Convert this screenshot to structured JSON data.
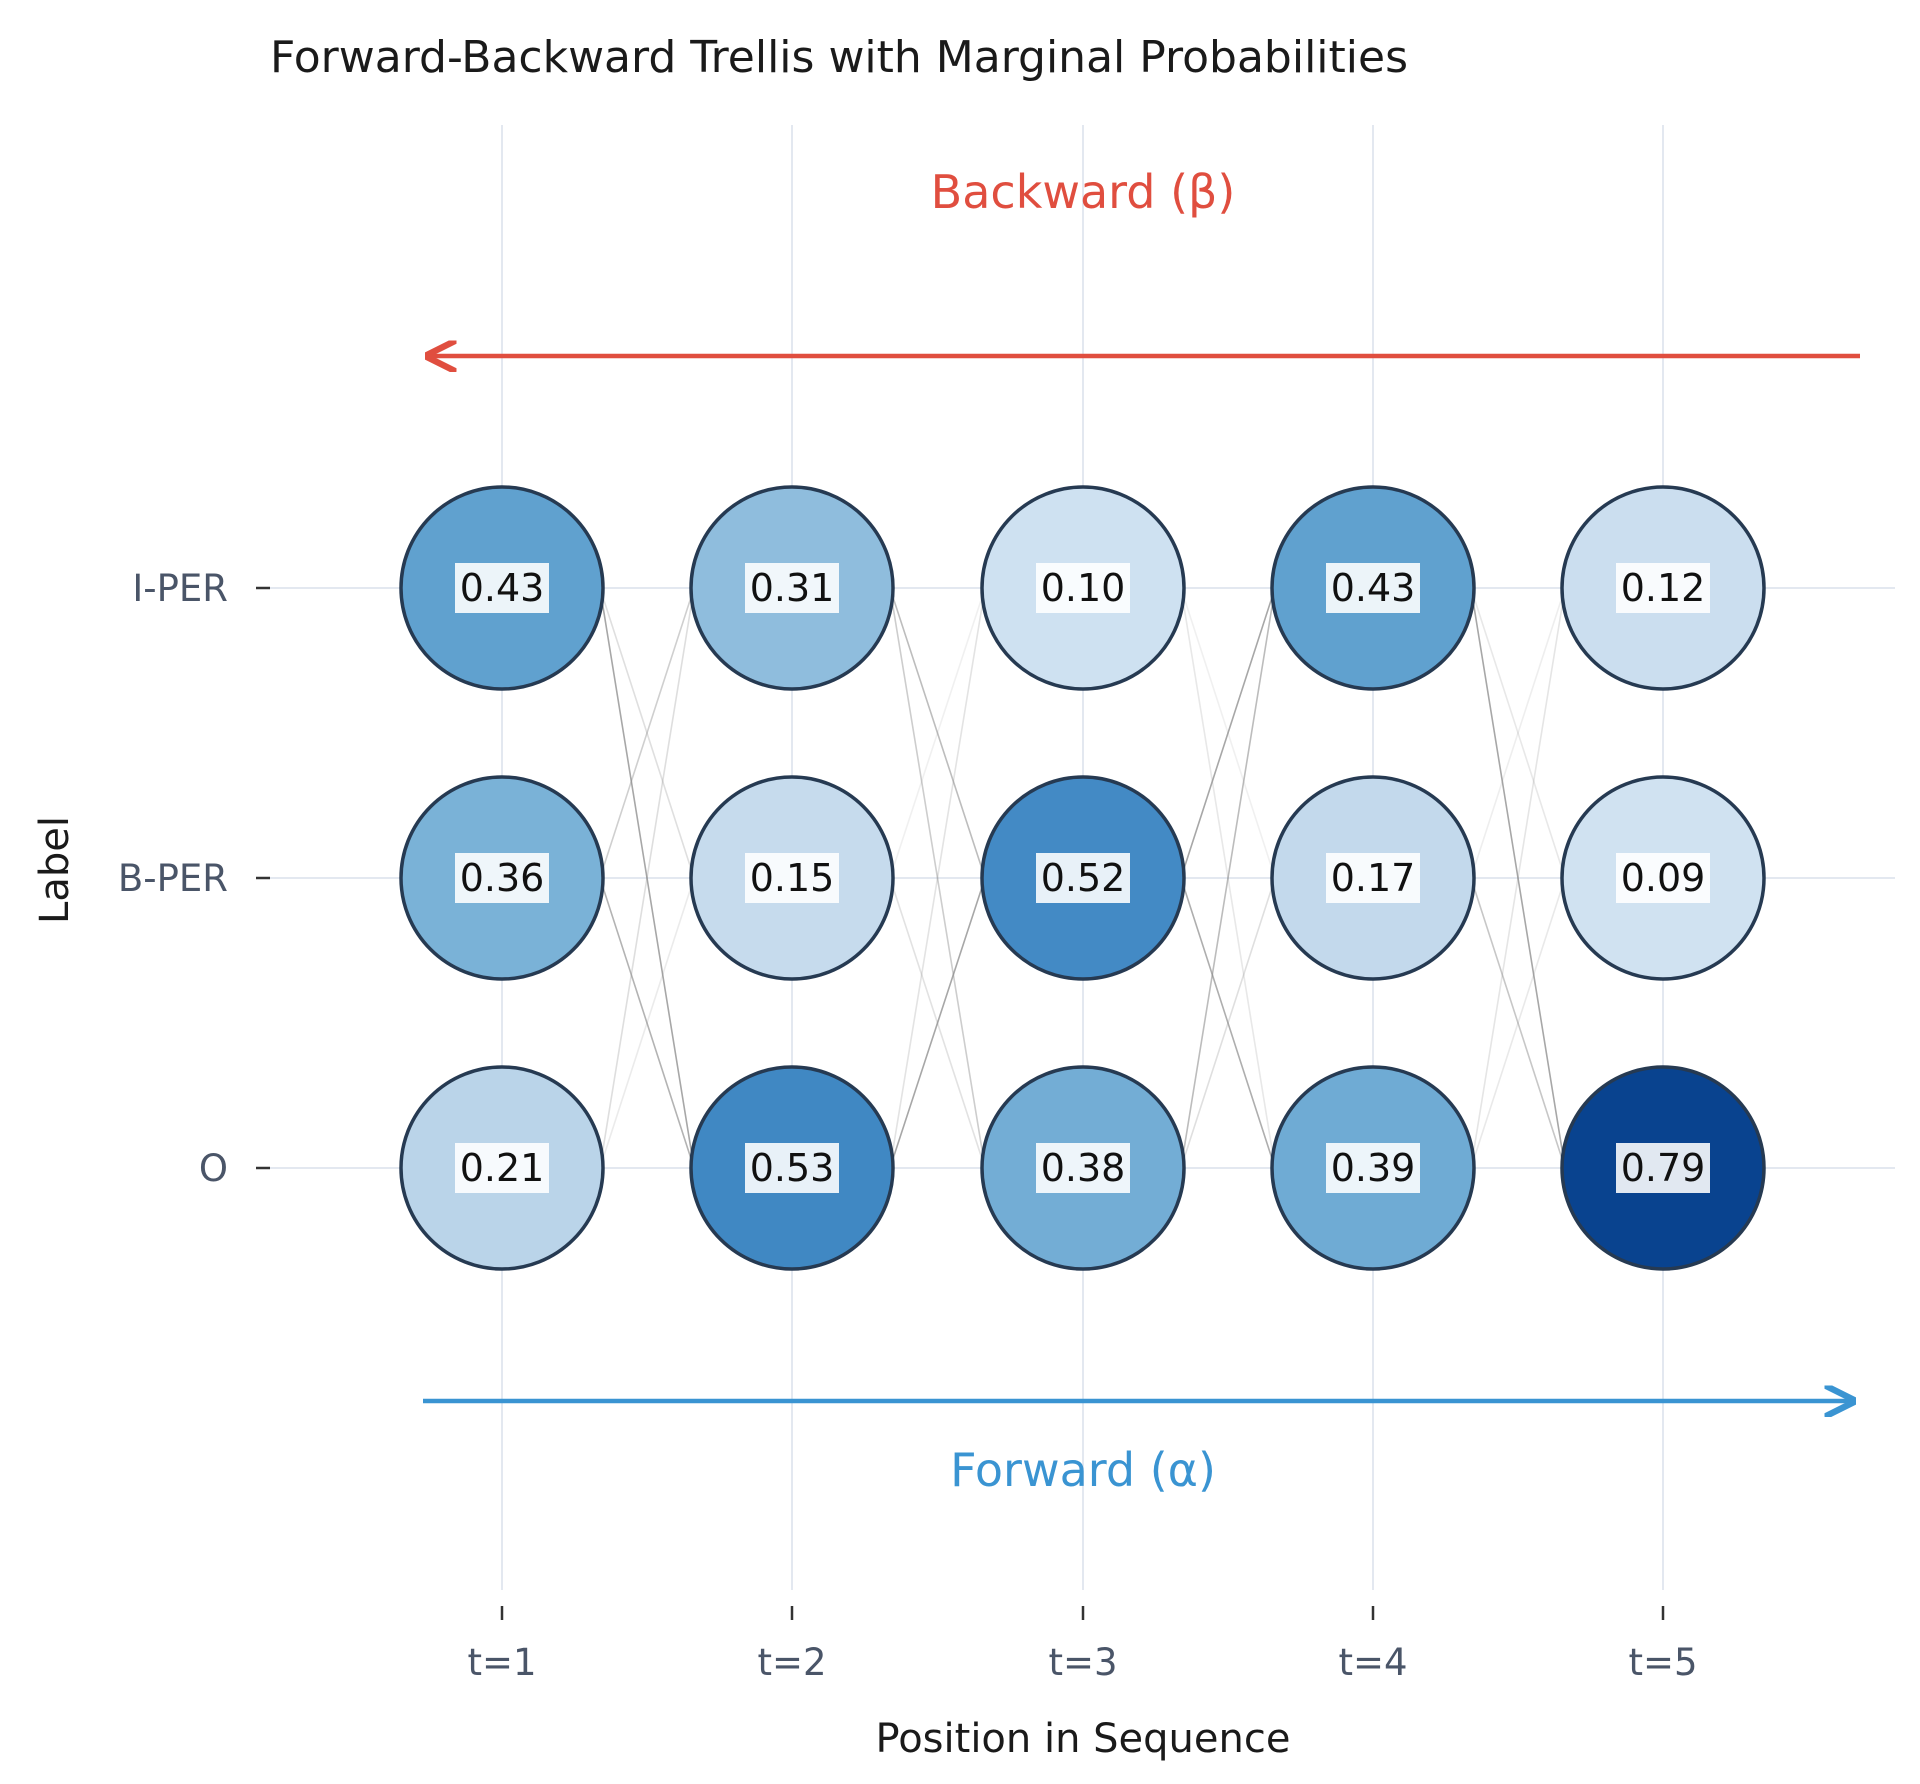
{
  "chart_data": {
    "type": "trellis",
    "title": "Forward-Backward Trellis with Marginal Probabilities",
    "xlabel": "Position in Sequence",
    "ylabel": "Label",
    "x_categories": [
      "t=1",
      "t=2",
      "t=3",
      "t=4",
      "t=5"
    ],
    "y_categories": [
      "I-PER",
      "B-PER",
      "O"
    ],
    "values": [
      [
        0.43,
        0.31,
        0.1,
        0.43,
        0.12
      ],
      [
        0.36,
        0.15,
        0.52,
        0.17,
        0.09
      ],
      [
        0.21,
        0.53,
        0.38,
        0.39,
        0.79
      ]
    ],
    "value_labels": [
      [
        "0.43",
        "0.31",
        "0.10",
        "0.43",
        "0.12"
      ],
      [
        "0.36",
        "0.15",
        "0.52",
        "0.17",
        "0.09"
      ],
      [
        "0.21",
        "0.53",
        "0.38",
        "0.39",
        "0.79"
      ]
    ],
    "colorscale": "Blues",
    "grid": true,
    "annotations": {
      "backward_label": "Backward (β)",
      "forward_label": "Forward (α)"
    },
    "colors": {
      "backward": "#e04e3f",
      "forward": "#3a94d2",
      "node_border": "#263a52",
      "grid": "#e3e8f0"
    }
  }
}
